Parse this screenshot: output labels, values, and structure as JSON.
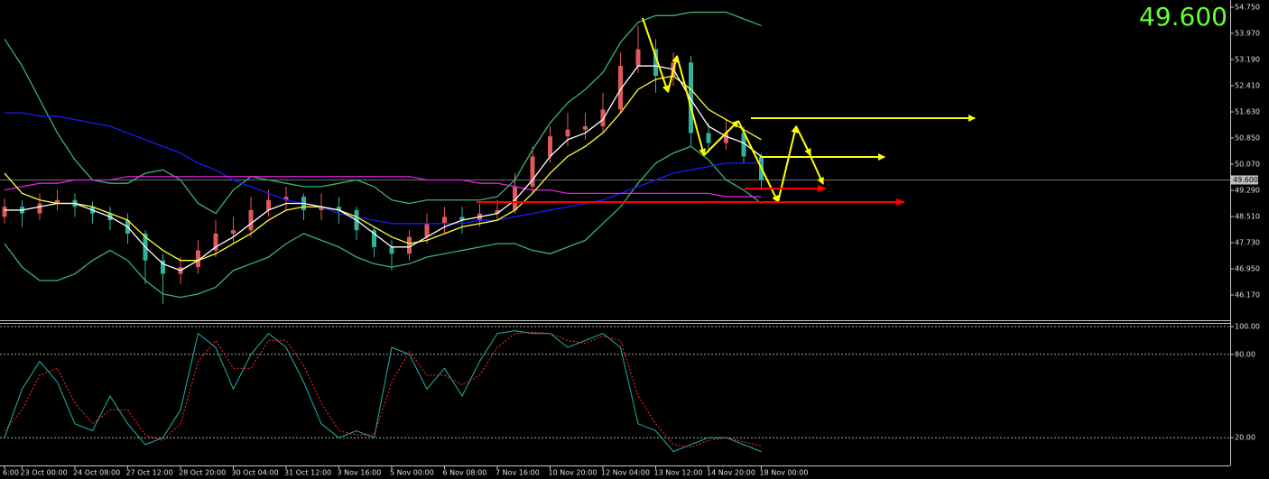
{
  "chart_data": [
    {
      "type": "candlestick",
      "categories": [
        "6:00",
        "23 Oct 00:00",
        null,
        null,
        "24 Oct 08:00",
        null,
        null,
        "27 Oct 12:00",
        null,
        null,
        "28 Oct 20:00",
        null,
        null,
        "30 Oct 04:00",
        null,
        null,
        "31 Oct 12:00",
        null,
        null,
        "3 Nov 16:00",
        null,
        null,
        "5 Nov 00:00",
        null,
        null,
        "6 Nov 08:00",
        null,
        null,
        "7 Nov 16:00",
        null,
        null,
        "10 Nov 20:00",
        null,
        null,
        "12 Nov 04:00",
        null,
        null,
        "13 Nov 12:00",
        null,
        null,
        "14 Nov 20:00",
        null,
        null,
        "18 Nov 00:00"
      ],
      "open": [
        48.5,
        48.8,
        48.6,
        48.9,
        49.0,
        48.8,
        48.6,
        48.4,
        48.0,
        47.2,
        46.8,
        47.0,
        47.5,
        48.0,
        48.1,
        48.7,
        49.0,
        49.1,
        48.7,
        48.8,
        48.7,
        48.1,
        47.6,
        47.4,
        47.9,
        48.3,
        48.5,
        48.4,
        48.6,
        48.7,
        49.4,
        50.3,
        50.9,
        51.1,
        51.2,
        51.7,
        53.0,
        53.5,
        52.7,
        53.1,
        51.0,
        50.7,
        51.0,
        50.3
      ],
      "high": [
        49.05,
        49.0,
        49.2,
        49.3,
        49.2,
        48.95,
        48.8,
        48.6,
        48.1,
        47.4,
        47.3,
        47.8,
        48.4,
        48.5,
        49.1,
        49.3,
        49.4,
        49.2,
        49.2,
        49.1,
        48.8,
        48.2,
        47.8,
        48.1,
        48.6,
        48.8,
        48.8,
        48.9,
        49.0,
        49.8,
        50.6,
        51.2,
        51.6,
        51.6,
        52.2,
        53.4,
        54.2,
        53.8,
        53.4,
        53.3,
        51.3,
        51.4,
        51.2,
        50.4
      ],
      "low": [
        48.3,
        48.2,
        48.4,
        48.7,
        48.5,
        48.3,
        48.1,
        47.7,
        46.5,
        45.9,
        46.5,
        46.8,
        47.3,
        47.7,
        47.9,
        48.5,
        48.7,
        48.4,
        48.4,
        48.3,
        47.8,
        47.3,
        46.9,
        47.2,
        47.7,
        48.0,
        48.0,
        48.2,
        48.4,
        48.6,
        49.2,
        50.1,
        50.6,
        50.8,
        51.0,
        51.6,
        52.8,
        52.2,
        52.4,
        50.6,
        50.4,
        50.5,
        50.1,
        49.3
      ],
      "close": [
        48.8,
        48.6,
        48.9,
        49.0,
        48.8,
        48.6,
        48.4,
        48.0,
        47.2,
        46.8,
        47.0,
        47.5,
        48.0,
        48.1,
        48.7,
        49.0,
        49.1,
        48.7,
        48.8,
        48.7,
        48.1,
        47.6,
        47.4,
        47.9,
        48.3,
        48.5,
        48.4,
        48.6,
        48.7,
        49.4,
        50.3,
        50.9,
        51.1,
        51.2,
        51.7,
        53.0,
        53.5,
        52.7,
        53.1,
        51.0,
        50.7,
        51.0,
        50.3,
        49.6
      ],
      "up_color": "#e05a5a",
      "down_color": "#2fb39c",
      "overlays": [
        {
          "color": "#3cb371",
          "values": [
            53.8,
            53.0,
            52.0,
            51.0,
            50.2,
            49.6,
            49.5,
            49.5,
            49.8,
            49.9,
            49.6,
            48.9,
            48.6,
            49.3,
            49.7,
            49.6,
            49.5,
            49.4,
            49.4,
            49.5,
            49.6,
            49.4,
            49.0,
            48.9,
            49.0,
            49.0,
            49.0,
            49.0,
            49.1,
            49.6,
            50.5,
            51.3,
            51.9,
            52.3,
            52.8,
            53.7,
            54.3,
            54.5,
            54.5,
            54.6,
            54.6,
            54.6,
            54.4,
            54.2
          ]
        },
        {
          "color": "#3cb371",
          "values": [
            47.7,
            47.0,
            46.6,
            46.6,
            46.8,
            47.2,
            47.5,
            47.2,
            46.6,
            46.2,
            46.1,
            46.2,
            46.4,
            46.9,
            47.1,
            47.3,
            47.7,
            48.0,
            47.8,
            47.6,
            47.3,
            47.1,
            47.0,
            47.1,
            47.3,
            47.4,
            47.5,
            47.6,
            47.7,
            47.7,
            47.5,
            47.4,
            47.6,
            47.8,
            48.3,
            48.8,
            49.5,
            50.1,
            50.4,
            50.6,
            50.2,
            49.6,
            49.3,
            48.9
          ]
        },
        {
          "color": "#1a1aff",
          "values": [
            51.6,
            51.6,
            51.5,
            51.5,
            51.4,
            51.3,
            51.2,
            51.0,
            50.8,
            50.6,
            50.4,
            50.1,
            49.9,
            49.6,
            49.4,
            49.2,
            49.0,
            48.9,
            48.8,
            48.6,
            48.5,
            48.4,
            48.3,
            48.3,
            48.3,
            48.3,
            48.3,
            48.4,
            48.4,
            48.5,
            48.6,
            48.7,
            48.8,
            48.9,
            49.0,
            49.2,
            49.4,
            49.6,
            49.8,
            49.9,
            50.0,
            50.1,
            50.1,
            50.1
          ]
        },
        {
          "color": "#e020e0",
          "values": [
            49.3,
            49.4,
            49.5,
            49.5,
            49.6,
            49.6,
            49.6,
            49.7,
            49.7,
            49.7,
            49.7,
            49.7,
            49.7,
            49.7,
            49.7,
            49.7,
            49.7,
            49.7,
            49.7,
            49.7,
            49.7,
            49.7,
            49.7,
            49.7,
            49.6,
            49.6,
            49.6,
            49.5,
            49.5,
            49.4,
            49.3,
            49.3,
            49.2,
            49.2,
            49.2,
            49.2,
            49.2,
            49.2,
            49.2,
            49.2,
            49.2,
            49.1,
            49.1,
            49.1
          ]
        },
        {
          "color": "#ffff33",
          "values": [
            49.8,
            49.2,
            49.0,
            48.9,
            48.9,
            48.8,
            48.6,
            48.4,
            47.9,
            47.5,
            47.2,
            47.2,
            47.4,
            47.7,
            48.0,
            48.4,
            48.7,
            48.8,
            48.8,
            48.7,
            48.5,
            48.2,
            47.9,
            47.7,
            47.8,
            48.0,
            48.2,
            48.3,
            48.4,
            48.7,
            49.2,
            49.8,
            50.3,
            50.6,
            51.0,
            51.6,
            52.3,
            52.6,
            52.7,
            52.3,
            51.7,
            51.4,
            51.1,
            50.8
          ]
        },
        {
          "color": "#ffffff",
          "values": [
            48.7,
            48.7,
            48.8,
            48.9,
            48.9,
            48.7,
            48.5,
            48.2,
            47.6,
            47.1,
            46.9,
            47.2,
            47.6,
            47.9,
            48.3,
            48.7,
            48.9,
            48.9,
            48.8,
            48.7,
            48.4,
            48.0,
            47.6,
            47.6,
            47.9,
            48.2,
            48.4,
            48.5,
            48.6,
            49.0,
            49.6,
            50.3,
            50.8,
            51.0,
            51.4,
            52.3,
            53.0,
            53.0,
            52.9,
            52.0,
            51.2,
            50.9,
            50.7,
            50.3
          ]
        }
      ],
      "ylim": [
        45.417,
        54.965
      ],
      "yticks": [
        {
          "value": 54.75,
          "label": "54.750"
        },
        {
          "value": 53.97,
          "label": "53.970"
        },
        {
          "value": 53.19,
          "label": "53.190"
        },
        {
          "value": 52.41,
          "label": "52.410"
        },
        {
          "value": 51.63,
          "label": "51.630"
        },
        {
          "value": 50.85,
          "label": "50.850"
        },
        {
          "value": 50.07,
          "label": "50.070"
        },
        {
          "value": 49.29,
          "label": "49.290"
        },
        {
          "value": 48.51,
          "label": "48.510"
        },
        {
          "value": 47.73,
          "label": "47.730"
        },
        {
          "value": 46.95,
          "label": "46.950"
        },
        {
          "value": 46.17,
          "label": "46.170"
        }
      ],
      "last_price": {
        "value": 49.6,
        "label": "49.600"
      },
      "grid": false
    },
    {
      "type": "line",
      "ylim": [
        0,
        100
      ],
      "yticks": [
        {
          "value": 100,
          "label": "100.00"
        },
        {
          "value": 80,
          "label": "80.00"
        },
        {
          "value": 20,
          "label": "20.00"
        }
      ],
      "grid": true,
      "series": [
        {
          "color": "#20b2aa",
          "values": [
            20,
            55,
            75,
            60,
            30,
            25,
            50,
            30,
            15,
            20,
            40,
            95,
            85,
            55,
            80,
            95,
            85,
            60,
            30,
            20,
            25,
            20,
            85,
            80,
            55,
            70,
            50,
            75,
            95,
            97,
            95,
            95,
            85,
            90,
            95,
            85,
            30,
            25,
            10,
            15,
            20,
            20,
            15,
            10
          ]
        },
        {
          "color": "#ff3030",
          "dash": true,
          "values": [
            25,
            40,
            65,
            70,
            45,
            30,
            40,
            40,
            22,
            18,
            30,
            75,
            90,
            70,
            70,
            90,
            90,
            72,
            45,
            25,
            22,
            22,
            60,
            82,
            65,
            65,
            58,
            65,
            85,
            95,
            96,
            95,
            90,
            88,
            93,
            90,
            50,
            30,
            15,
            13,
            18,
            20,
            17,
            14
          ]
        }
      ]
    }
  ]
}
